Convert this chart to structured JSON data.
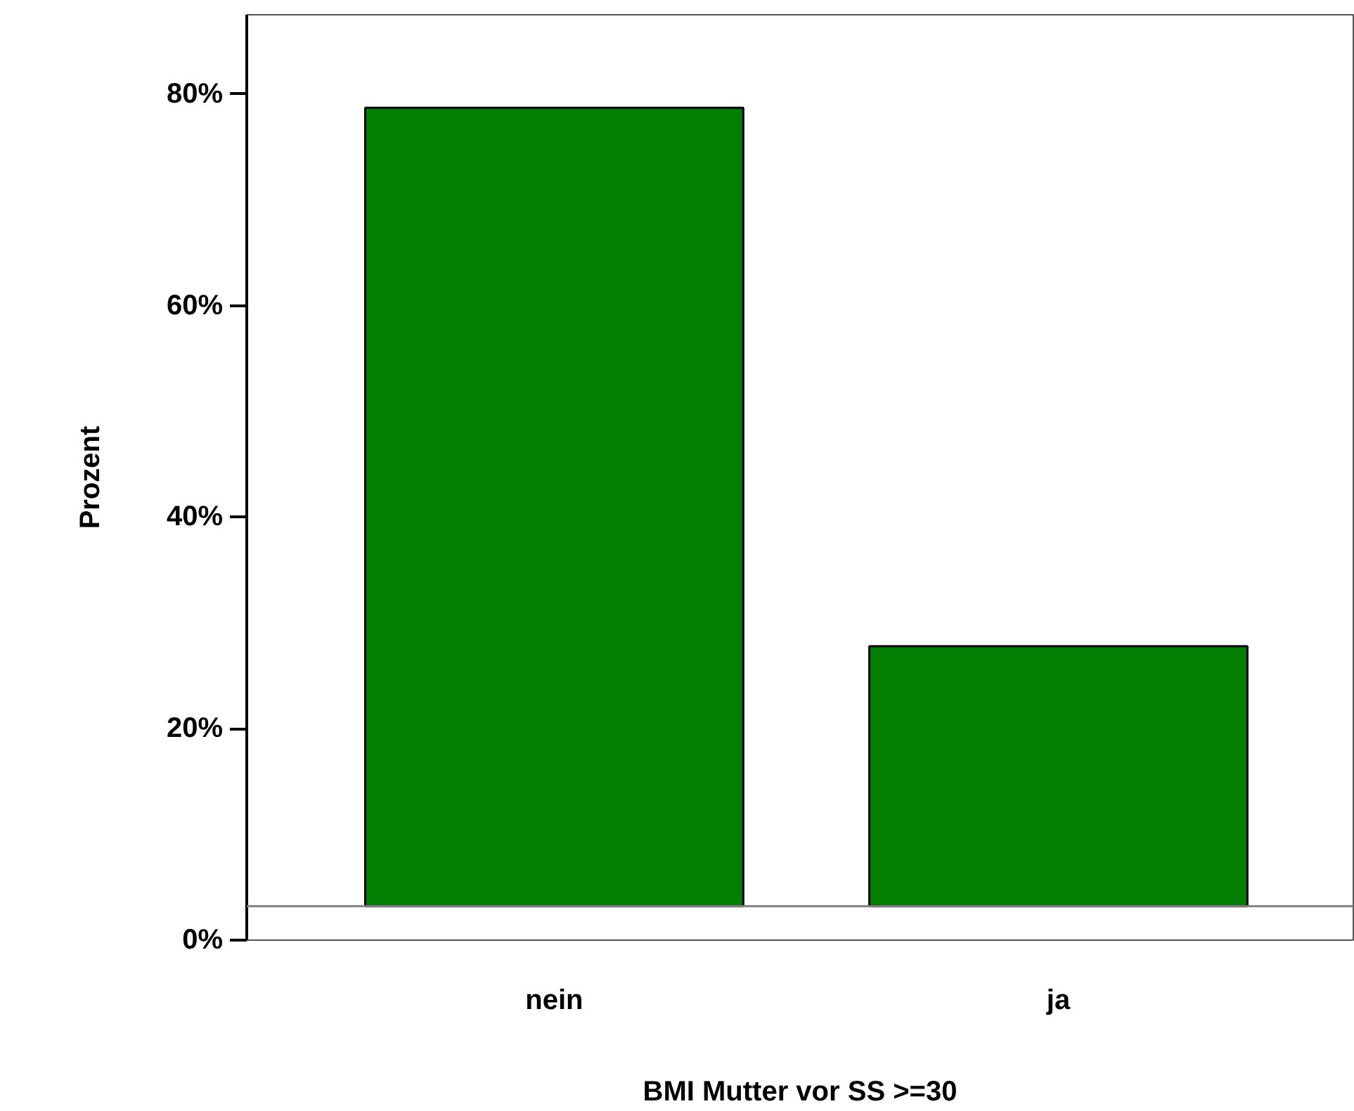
{
  "chart_data": {
    "type": "bar",
    "xlabel": "BMI Mutter vor SS >=30",
    "ylabel": "Prozent",
    "categories": [
      "nein",
      "ja"
    ],
    "values": [
      75.5,
      24.6
    ],
    "base": [
      3.2,
      3.2
    ],
    "color": "#007f00",
    "ylim": [
      0,
      87.5
    ],
    "yticks": [
      {
        "value": 0,
        "label": "0%"
      },
      {
        "value": 20,
        "label": "20%"
      },
      {
        "value": 40,
        "label": "40%"
      },
      {
        "value": 60,
        "label": "60%"
      },
      {
        "value": 80,
        "label": "80%"
      }
    ],
    "ref_lines": [
      {
        "axis": "y",
        "value": 3.2,
        "color": "#808080"
      }
    ],
    "grid": false
  }
}
